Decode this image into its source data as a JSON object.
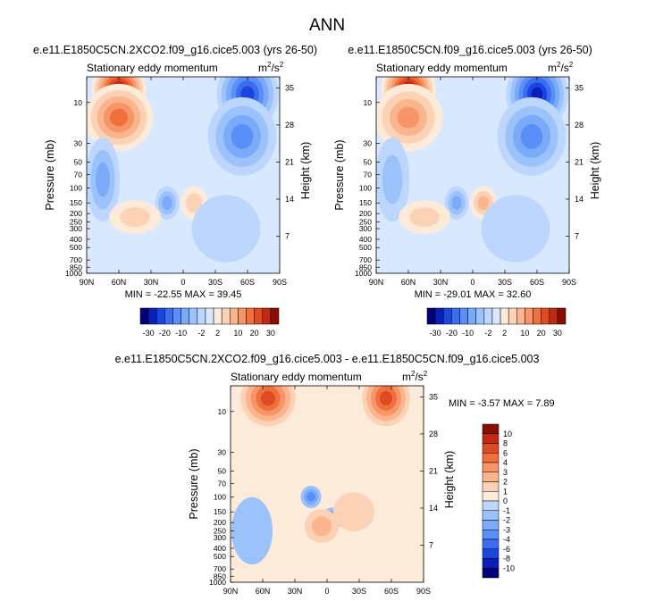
{
  "page_title": "ANN",
  "palette": [
    "#00007c",
    "#0a1fb8",
    "#1c44e0",
    "#3c6cf0",
    "#5a8ef8",
    "#7aaaf8",
    "#9cc2fb",
    "#bcd6fd",
    "#d8e8fe",
    "#fdebd9",
    "#fcd2b6",
    "#fbb58c",
    "#f79468",
    "#f0703c",
    "#e04a22",
    "#c02a10",
    "#8a0d04"
  ],
  "chart_data": [
    {
      "type": "contour",
      "title": "e.e11.E1850C5CN.2XCO2.f09_g16.cice5.003 (yrs 26-50)",
      "subtitle_left": "Stationary eddy momentum",
      "units": "m²/s²",
      "units_base": "m",
      "units_mid": "/s",
      "units_exp": "2",
      "xlabel": "",
      "ylabel": "Pressure (mb)",
      "y2label": "Height (km)",
      "x_ticks": [
        "90N",
        "60N",
        "30N",
        "0",
        "30S",
        "60S",
        "90S"
      ],
      "x_tick_values": [
        90,
        60,
        30,
        0,
        -30,
        -60,
        -90
      ],
      "xlim": [
        90,
        -90
      ],
      "y_ticks": [
        "10",
        "30",
        "50",
        "70",
        "100",
        "150",
        "200",
        "250",
        "300",
        "400",
        "500",
        "700",
        "850",
        "1000"
      ],
      "y_tick_values": [
        10,
        30,
        50,
        70,
        100,
        150,
        200,
        250,
        300,
        400,
        500,
        700,
        850,
        1000
      ],
      "ylim_mb": [
        1000,
        5
      ],
      "height_ticks": [
        "35",
        "28",
        "21",
        "14",
        "7"
      ],
      "height_tick_values": [
        35,
        28,
        21,
        14,
        7
      ],
      "stats_text": "MIN = -22.55   MAX = 39.45",
      "min": -22.55,
      "max": 39.45,
      "cells": [
        {
          "lat": 60,
          "p": 7,
          "v": 39,
          "w": 16,
          "h": 1.0
        },
        {
          "lat": 60,
          "p": 15,
          "v": 18,
          "w": 20,
          "h": 1.2
        },
        {
          "lat": -60,
          "p": 8,
          "v": -22,
          "w": 18,
          "h": 1.3
        },
        {
          "lat": -55,
          "p": 25,
          "v": -10,
          "w": 20,
          "h": 1.4
        },
        {
          "lat": 75,
          "p": 80,
          "v": -5,
          "w": 10,
          "h": 1.5
        },
        {
          "lat": 15,
          "p": 150,
          "v": -6,
          "w": 7,
          "h": 0.6
        },
        {
          "lat": -10,
          "p": 150,
          "v": 4,
          "w": 8,
          "h": 0.6
        },
        {
          "lat": 45,
          "p": 220,
          "v": 3,
          "w": 15,
          "h": 0.6
        },
        {
          "lat": -40,
          "p": 300,
          "v": -1.5,
          "w": 20,
          "h": 1.2
        }
      ]
    },
    {
      "type": "contour",
      "title": "e.e11.E1850C5CN.f09_g16.cice5.003 (yrs 26-50)",
      "subtitle_left": "Stationary eddy momentum",
      "units": "m²/s²",
      "units_base": "m",
      "units_mid": "/s",
      "units_exp": "2",
      "xlabel": "",
      "ylabel": "Pressure (mb)",
      "y2label": "Height (km)",
      "x_ticks": [
        "90N",
        "60N",
        "30N",
        "0",
        "30S",
        "60S",
        "90S"
      ],
      "x_tick_values": [
        90,
        60,
        30,
        0,
        -30,
        -60,
        -90
      ],
      "xlim": [
        90,
        -90
      ],
      "y_ticks": [
        "10",
        "30",
        "50",
        "70",
        "100",
        "150",
        "200",
        "250",
        "300",
        "400",
        "500",
        "700",
        "850",
        "1000"
      ],
      "y_tick_values": [
        10,
        30,
        50,
        70,
        100,
        150,
        200,
        250,
        300,
        400,
        500,
        700,
        850,
        1000
      ],
      "ylim_mb": [
        1000,
        5
      ],
      "height_ticks": [
        "35",
        "28",
        "21",
        "14",
        "7"
      ],
      "height_tick_values": [
        35,
        28,
        21,
        14,
        7
      ],
      "stats_text": "MIN = -29.01   MAX = 32.60",
      "min": -29.01,
      "max": 32.6,
      "cells": [
        {
          "lat": 60,
          "p": 7,
          "v": 32,
          "w": 16,
          "h": 1.0
        },
        {
          "lat": 60,
          "p": 15,
          "v": 14,
          "w": 20,
          "h": 1.2
        },
        {
          "lat": -60,
          "p": 8,
          "v": -29,
          "w": 18,
          "h": 1.3
        },
        {
          "lat": -55,
          "p": 25,
          "v": -12,
          "w": 20,
          "h": 1.4
        },
        {
          "lat": 75,
          "p": 80,
          "v": -4,
          "w": 10,
          "h": 1.5
        },
        {
          "lat": 15,
          "p": 150,
          "v": -7,
          "w": 7,
          "h": 0.6
        },
        {
          "lat": -10,
          "p": 150,
          "v": 5,
          "w": 8,
          "h": 0.6
        },
        {
          "lat": 45,
          "p": 220,
          "v": 3,
          "w": 15,
          "h": 0.6
        },
        {
          "lat": -40,
          "p": 300,
          "v": -1.5,
          "w": 20,
          "h": 1.2
        }
      ]
    },
    {
      "type": "contour",
      "title": "e.e11.E1850C5CN.2XCO2.f09_g16.cice5.003 - e.e11.E1850C5CN.f09_g16.cice5.003",
      "subtitle_left": "Stationary eddy momentum",
      "units": "m²/s²",
      "units_base": "m",
      "units_mid": "/s",
      "units_exp": "2",
      "xlabel": "",
      "ylabel": "Pressure (mb)",
      "y2label": "Height (km)",
      "x_ticks": [
        "90N",
        "60N",
        "30N",
        "0",
        "30S",
        "60S",
        "90S"
      ],
      "x_tick_values": [
        90,
        60,
        30,
        0,
        -30,
        -60,
        -90
      ],
      "xlim": [
        90,
        -90
      ],
      "y_ticks": [
        "10",
        "30",
        "50",
        "70",
        "100",
        "150",
        "200",
        "250",
        "300",
        "400",
        "500",
        "700",
        "850",
        "1000"
      ],
      "y_tick_values": [
        10,
        30,
        50,
        70,
        100,
        150,
        200,
        250,
        300,
        400,
        500,
        700,
        850,
        1000
      ],
      "ylim_mb": [
        1000,
        5
      ],
      "height_ticks": [
        "35",
        "28",
        "21",
        "14",
        "7"
      ],
      "height_tick_values": [
        35,
        28,
        21,
        14,
        7
      ],
      "stats_text": "MIN =  -3.57   MAX =   7.89",
      "min": -3.57,
      "max": 7.89,
      "cells": [
        {
          "lat": 55,
          "p": 7,
          "v": 7.9,
          "w": 16,
          "h": 1.0
        },
        {
          "lat": -55,
          "p": 7,
          "v": 6.5,
          "w": 14,
          "h": 1.0
        },
        {
          "lat": 15,
          "p": 100,
          "v": -3.5,
          "w": 6,
          "h": 0.4
        },
        {
          "lat": -5,
          "p": 180,
          "v": -3.0,
          "w": 6,
          "h": 0.4
        },
        {
          "lat": 5,
          "p": 220,
          "v": 2.0,
          "w": 10,
          "h": 0.6
        },
        {
          "lat": -25,
          "p": 150,
          "v": 1.2,
          "w": 12,
          "h": 0.7
        },
        {
          "lat": 70,
          "p": 250,
          "v": -1.5,
          "w": 12,
          "h": 1.2
        }
      ]
    }
  ],
  "colorbar_top": {
    "labels": [
      "-30",
      "-20",
      "-10",
      "-2",
      "2",
      "10",
      "20",
      "30"
    ],
    "levels": [
      -30,
      -25,
      -20,
      -15,
      -10,
      -5,
      -2,
      -1,
      0,
      1,
      2,
      5,
      10,
      15,
      20,
      25,
      30
    ]
  },
  "colorbar_bottom": {
    "labels": [
      "10",
      "8",
      "6",
      "4",
      "3",
      "2",
      "1",
      "0",
      "-1",
      "-2",
      "-3",
      "-4",
      "-6",
      "-8",
      "-10"
    ],
    "levels": [
      10,
      8,
      6,
      4,
      3,
      2,
      1,
      0,
      -1,
      -2,
      -3,
      -4,
      -6,
      -8,
      -10
    ]
  }
}
